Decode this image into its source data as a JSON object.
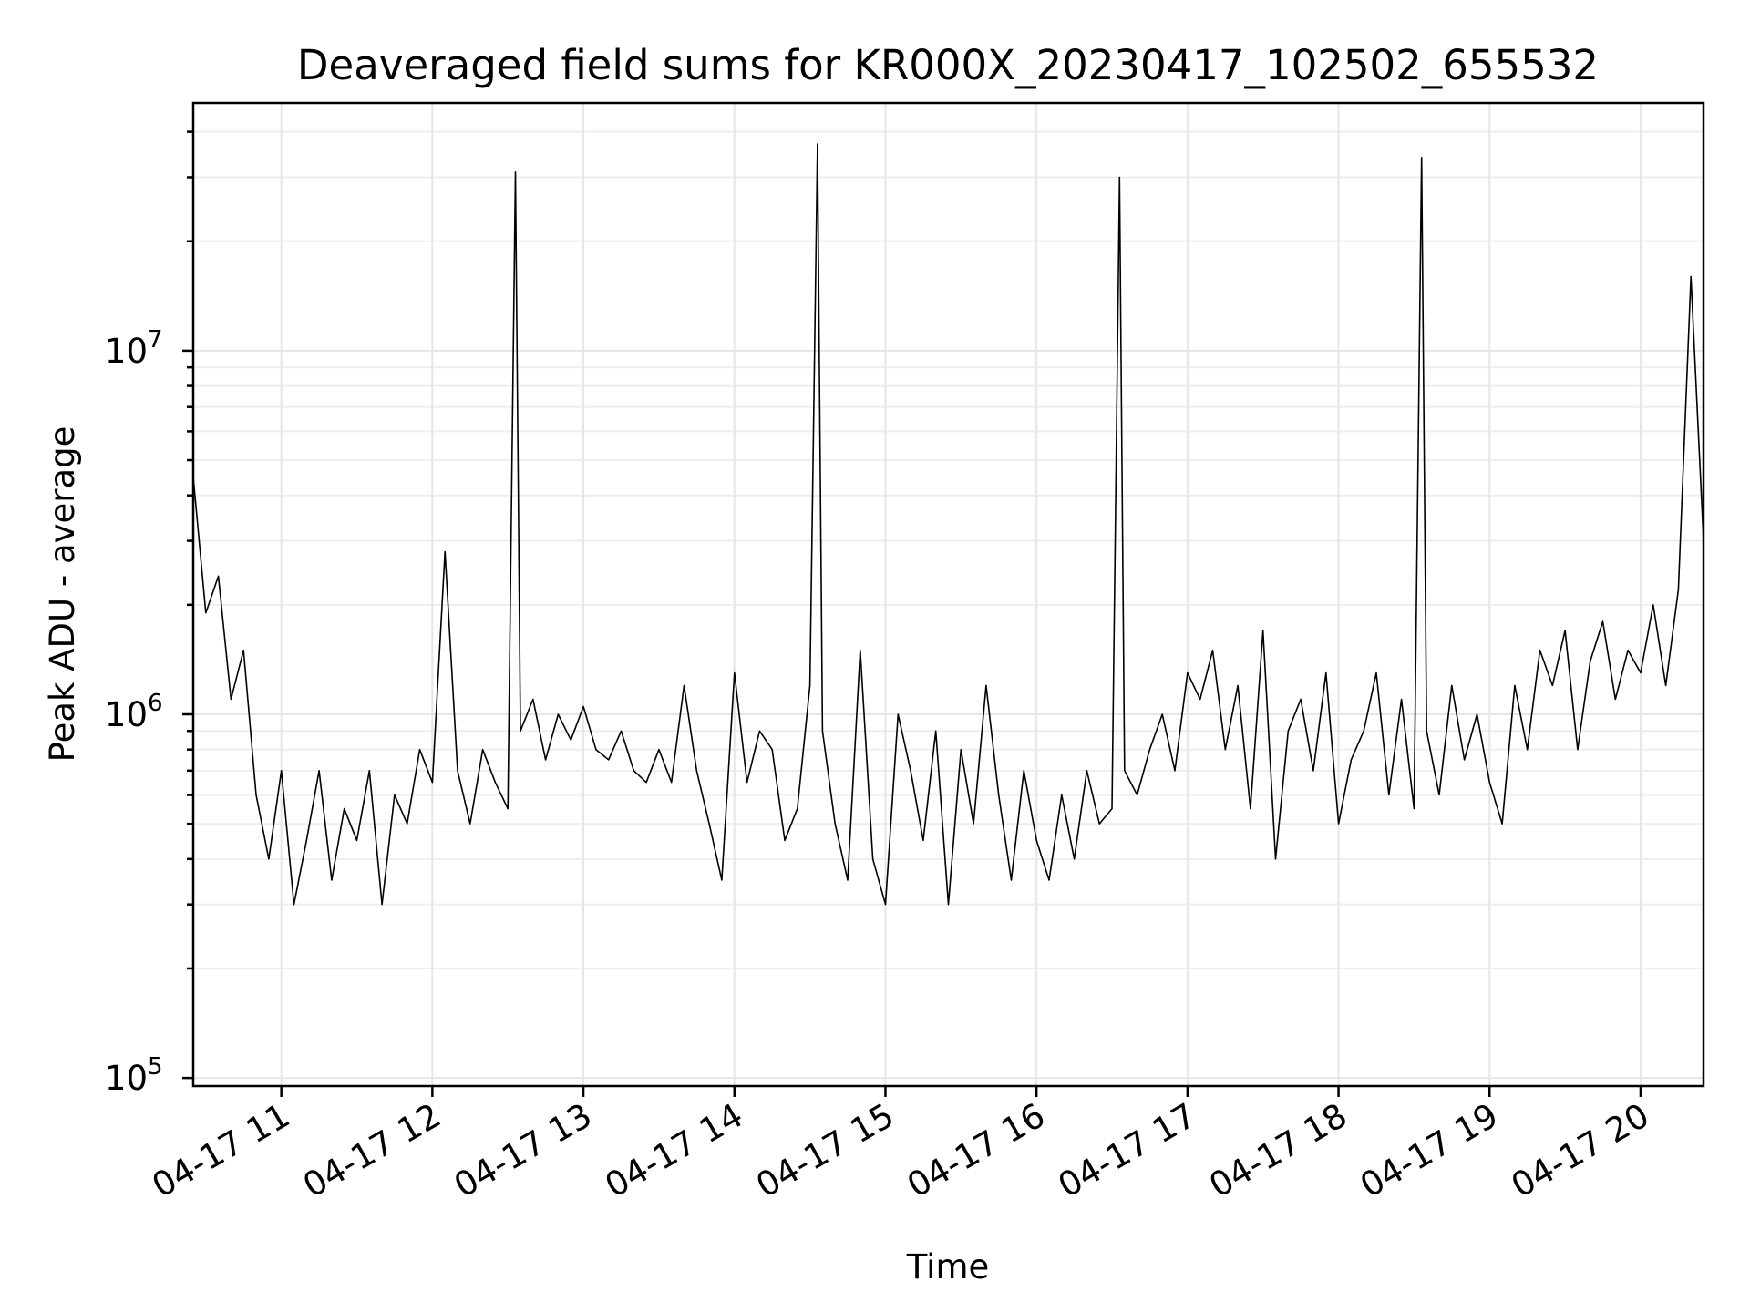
{
  "chart_data": {
    "type": "line",
    "title": "Deaveraged field sums for KR000X_20230417_102502_655532",
    "xlabel": "Time",
    "ylabel": "Peak ADU - average",
    "x_range": [
      "2023-04-17T10:25:00",
      "2023-04-17T20:25:00"
    ],
    "y_scale": "log",
    "ylim": [
      95000,
      48000000
    ],
    "grid": true,
    "x_ticks": [
      {
        "value": "2023-04-17T11:00:00",
        "label": "04-17 11"
      },
      {
        "value": "2023-04-17T12:00:00",
        "label": "04-17 12"
      },
      {
        "value": "2023-04-17T13:00:00",
        "label": "04-17 13"
      },
      {
        "value": "2023-04-17T14:00:00",
        "label": "04-17 14"
      },
      {
        "value": "2023-04-17T15:00:00",
        "label": "04-17 15"
      },
      {
        "value": "2023-04-17T16:00:00",
        "label": "04-17 16"
      },
      {
        "value": "2023-04-17T17:00:00",
        "label": "04-17 17"
      },
      {
        "value": "2023-04-17T18:00:00",
        "label": "04-17 18"
      },
      {
        "value": "2023-04-17T19:00:00",
        "label": "04-17 19"
      },
      {
        "value": "2023-04-17T20:00:00",
        "label": "04-17 20"
      }
    ],
    "y_ticks": [
      {
        "value": 100000,
        "base": "10",
        "exp": "5"
      },
      {
        "value": 1000000,
        "base": "10",
        "exp": "6"
      },
      {
        "value": 10000000,
        "base": "10",
        "exp": "7"
      }
    ],
    "series": [
      {
        "color": "#000000",
        "x": [
          "2023-04-17T10:25:00",
          "2023-04-17T10:30:00",
          "2023-04-17T10:35:00",
          "2023-04-17T10:40:00",
          "2023-04-17T10:45:00",
          "2023-04-17T10:50:00",
          "2023-04-17T10:55:00",
          "2023-04-17T11:00:00",
          "2023-04-17T11:05:00",
          "2023-04-17T11:10:00",
          "2023-04-17T11:15:00",
          "2023-04-17T11:20:00",
          "2023-04-17T11:25:00",
          "2023-04-17T11:30:00",
          "2023-04-17T11:35:00",
          "2023-04-17T11:40:00",
          "2023-04-17T11:45:00",
          "2023-04-17T11:50:00",
          "2023-04-17T11:55:00",
          "2023-04-17T12:00:00",
          "2023-04-17T12:05:00",
          "2023-04-17T12:10:00",
          "2023-04-17T12:15:00",
          "2023-04-17T12:20:00",
          "2023-04-17T12:25:00",
          "2023-04-17T12:30:00",
          "2023-04-17T12:33:00",
          "2023-04-17T12:35:00",
          "2023-04-17T12:40:00",
          "2023-04-17T12:45:00",
          "2023-04-17T12:50:00",
          "2023-04-17T12:55:00",
          "2023-04-17T13:00:00",
          "2023-04-17T13:05:00",
          "2023-04-17T13:10:00",
          "2023-04-17T13:15:00",
          "2023-04-17T13:20:00",
          "2023-04-17T13:25:00",
          "2023-04-17T13:30:00",
          "2023-04-17T13:35:00",
          "2023-04-17T13:40:00",
          "2023-04-17T13:45:00",
          "2023-04-17T13:50:00",
          "2023-04-17T13:55:00",
          "2023-04-17T14:00:00",
          "2023-04-17T14:05:00",
          "2023-04-17T14:10:00",
          "2023-04-17T14:15:00",
          "2023-04-17T14:20:00",
          "2023-04-17T14:25:00",
          "2023-04-17T14:30:00",
          "2023-04-17T14:33:00",
          "2023-04-17T14:35:00",
          "2023-04-17T14:40:00",
          "2023-04-17T14:45:00",
          "2023-04-17T14:50:00",
          "2023-04-17T14:55:00",
          "2023-04-17T15:00:00",
          "2023-04-17T15:05:00",
          "2023-04-17T15:10:00",
          "2023-04-17T15:15:00",
          "2023-04-17T15:20:00",
          "2023-04-17T15:25:00",
          "2023-04-17T15:30:00",
          "2023-04-17T15:35:00",
          "2023-04-17T15:40:00",
          "2023-04-17T15:45:00",
          "2023-04-17T15:50:00",
          "2023-04-17T15:55:00",
          "2023-04-17T16:00:00",
          "2023-04-17T16:05:00",
          "2023-04-17T16:10:00",
          "2023-04-17T16:15:00",
          "2023-04-17T16:20:00",
          "2023-04-17T16:25:00",
          "2023-04-17T16:30:00",
          "2023-04-17T16:33:00",
          "2023-04-17T16:35:00",
          "2023-04-17T16:40:00",
          "2023-04-17T16:45:00",
          "2023-04-17T16:50:00",
          "2023-04-17T16:55:00",
          "2023-04-17T17:00:00",
          "2023-04-17T17:05:00",
          "2023-04-17T17:10:00",
          "2023-04-17T17:15:00",
          "2023-04-17T17:20:00",
          "2023-04-17T17:25:00",
          "2023-04-17T17:30:00",
          "2023-04-17T17:35:00",
          "2023-04-17T17:40:00",
          "2023-04-17T17:45:00",
          "2023-04-17T17:50:00",
          "2023-04-17T17:55:00",
          "2023-04-17T18:00:00",
          "2023-04-17T18:05:00",
          "2023-04-17T18:10:00",
          "2023-04-17T18:15:00",
          "2023-04-17T18:20:00",
          "2023-04-17T18:25:00",
          "2023-04-17T18:30:00",
          "2023-04-17T18:33:00",
          "2023-04-17T18:35:00",
          "2023-04-17T18:40:00",
          "2023-04-17T18:45:00",
          "2023-04-17T18:50:00",
          "2023-04-17T18:55:00",
          "2023-04-17T19:00:00",
          "2023-04-17T19:05:00",
          "2023-04-17T19:10:00",
          "2023-04-17T19:15:00",
          "2023-04-17T19:20:00",
          "2023-04-17T19:25:00",
          "2023-04-17T19:30:00",
          "2023-04-17T19:35:00",
          "2023-04-17T19:40:00",
          "2023-04-17T19:45:00",
          "2023-04-17T19:50:00",
          "2023-04-17T19:55:00",
          "2023-04-17T20:00:00",
          "2023-04-17T20:05:00",
          "2023-04-17T20:10:00",
          "2023-04-17T20:15:00",
          "2023-04-17T20:20:00",
          "2023-04-17T20:25:00"
        ],
        "y": [
          4500000,
          1900000,
          2400000,
          1100000,
          1500000,
          600000,
          400000,
          700000,
          300000,
          450000,
          700000,
          350000,
          550000,
          450000,
          700000,
          300000,
          600000,
          500000,
          800000,
          650000,
          2800000,
          700000,
          500000,
          800000,
          650000,
          550000,
          31000000,
          900000,
          1100000,
          750000,
          1000000,
          850000,
          1050000,
          800000,
          750000,
          900000,
          700000,
          650000,
          800000,
          650000,
          1200000,
          700000,
          500000,
          350000,
          1300000,
          650000,
          900000,
          800000,
          450000,
          550000,
          1200000,
          37000000,
          900000,
          500000,
          350000,
          1500000,
          400000,
          300000,
          1000000,
          700000,
          450000,
          900000,
          300000,
          800000,
          500000,
          1200000,
          600000,
          350000,
          700000,
          450000,
          350000,
          600000,
          400000,
          700000,
          500000,
          550000,
          30000000,
          700000,
          600000,
          800000,
          1000000,
          700000,
          1300000,
          1100000,
          1500000,
          800000,
          1200000,
          550000,
          1700000,
          400000,
          900000,
          1100000,
          700000,
          1300000,
          500000,
          750000,
          900000,
          1300000,
          600000,
          1100000,
          550000,
          34000000,
          900000,
          600000,
          1200000,
          750000,
          1000000,
          650000,
          500000,
          1200000,
          800000,
          1500000,
          1200000,
          1700000,
          800000,
          1400000,
          1800000,
          1100000,
          1500000,
          1300000,
          2000000,
          1200000,
          2200000,
          16000000,
          3000000
        ]
      }
    ]
  }
}
